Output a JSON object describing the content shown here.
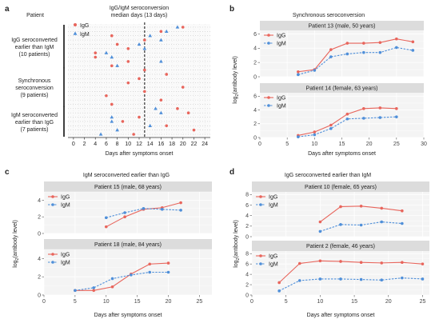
{
  "figure": {
    "panels": [
      {
        "letter": "a"
      },
      {
        "letter": "b"
      },
      {
        "letter": "c"
      },
      {
        "letter": "d"
      }
    ]
  },
  "colors": {
    "igg": "#e8655c",
    "igm": "#4f8fd9",
    "panel_bg": "#f4f4f4",
    "strip_bg": "#dcdcdc",
    "grid": "#ffffff",
    "dot_grid": "#c8c8c8"
  },
  "chart_data": [
    {
      "id": "a",
      "type": "scatter",
      "title": "IgG/IgM seroconversion",
      "subtitle": "median days (13 days)",
      "row_header": "Patient",
      "xlabel": "Days after symptoms onset",
      "xlim": [
        -1,
        25
      ],
      "xticks": [
        0,
        2,
        4,
        6,
        8,
        10,
        12,
        14,
        16,
        18,
        20,
        22,
        24
      ],
      "median": 13,
      "legend": [
        {
          "key": "igg",
          "label": "IgG",
          "marker": "circle"
        },
        {
          "key": "igm",
          "label": "IgM",
          "marker": "triangle"
        }
      ],
      "groups": [
        {
          "label_lines": [
            "IgG seroconverted",
            "earlier than IgM",
            "(10 patients)"
          ],
          "rows": [
            0,
            9
          ]
        },
        {
          "label_lines": [
            "Synchronous",
            "seroconversion",
            "(9 patients)"
          ],
          "rows": [
            10,
            18
          ]
        },
        {
          "label_lines": [
            "IgM seroconverted",
            "earlier than IgG",
            "(7 patients)"
          ],
          "rows": [
            19,
            25
          ]
        }
      ],
      "rows_total": 26,
      "points": [
        {
          "row": 0,
          "igg": 20,
          "igm": 19
        },
        {
          "row": 1,
          "igg": 16,
          "igm": 17
        },
        {
          "row": 2,
          "igg": 7,
          "igm": 14
        },
        {
          "row": 3,
          "igg": 13,
          "igm": 16
        },
        {
          "row": 4,
          "igg": 8,
          "igm": 12
        },
        {
          "row": 5,
          "igg": 10,
          "igm": 13
        },
        {
          "row": 6,
          "igg": 4,
          "igm": 6
        },
        {
          "row": 7,
          "igg": 4,
          "igm": 7
        },
        {
          "row": 8,
          "igg": 10,
          "igm": 16
        },
        {
          "row": 9,
          "igg": 7,
          "igm": 8
        },
        {
          "row": 10,
          "igg": 13,
          "igm": 13
        },
        {
          "row": 11,
          "igg": 17,
          "igm": 17
        },
        {
          "row": 12,
          "igg": 12,
          "igm": 12
        },
        {
          "row": 13,
          "igg": 10,
          "igm": 10
        },
        {
          "row": 14,
          "igg": 20,
          "igm": 20
        },
        {
          "row": 15,
          "igg": 13,
          "igm": 13
        },
        {
          "row": 16,
          "igg": 6,
          "igm": 6
        },
        {
          "row": 17,
          "igg": 16,
          "igm": 16
        },
        {
          "row": 18,
          "igg": 7,
          "igm": 7
        },
        {
          "row": 19,
          "igg": 19,
          "igm": 15
        },
        {
          "row": 20,
          "igg": 21,
          "igm": 16
        },
        {
          "row": 21,
          "igg": 12,
          "igm": 7
        },
        {
          "row": 22,
          "igg": 9,
          "igm": 7
        },
        {
          "row": 23,
          "igg": 17,
          "igm": 14
        },
        {
          "row": 24,
          "igg": 22,
          "igm": 8
        },
        {
          "row": 25,
          "igg": 11,
          "igm": 5
        }
      ]
    },
    {
      "id": "b",
      "type": "line",
      "title": "Synchronous seroconversion",
      "xlabel": "Days after symptoms onset",
      "ylabel": "log2(antibody level)",
      "xlim": [
        0,
        30
      ],
      "xticks": [
        0,
        5,
        10,
        15,
        20,
        25,
        30
      ],
      "facets": [
        {
          "strip": "Patient 13 (male, 50 years)",
          "ylim": [
            0,
            6.5
          ],
          "yticks": [
            0,
            2,
            4,
            6
          ],
          "series": [
            {
              "key": "igg",
              "name": "IgG",
              "x": [
                7,
                10,
                13,
                16,
                19,
                22,
                25,
                28
              ],
              "y": [
                0.7,
                1.0,
                3.8,
                4.7,
                4.7,
                4.8,
                5.3,
                4.9
              ]
            },
            {
              "key": "igm",
              "name": "IgM",
              "x": [
                7,
                10,
                13,
                16,
                19,
                22,
                25,
                28
              ],
              "y": [
                0.3,
                0.9,
                2.8,
                3.2,
                3.4,
                3.4,
                4.1,
                3.7
              ]
            }
          ]
        },
        {
          "strip": "Patient 14 (female, 63 years)",
          "ylim": [
            0,
            6.5
          ],
          "yticks": [
            0,
            2,
            4,
            6
          ],
          "series": [
            {
              "key": "igg",
              "name": "IgG",
              "x": [
                7,
                10,
                13,
                16,
                19,
                22,
                25
              ],
              "y": [
                0.3,
                0.8,
                1.8,
                3.4,
                4.2,
                4.3,
                4.2
              ]
            },
            {
              "key": "igm",
              "name": "IgM",
              "x": [
                7,
                10,
                13,
                16,
                19,
                22,
                25
              ],
              "y": [
                0.1,
                0.4,
                1.3,
                2.7,
                2.8,
                2.9,
                3.0
              ]
            }
          ]
        }
      ]
    },
    {
      "id": "c",
      "type": "line",
      "title": "IgM seroconverted earlier than IgG",
      "xlabel": "Days after symptoms onset",
      "ylabel": "log2(antibody level)",
      "xlim": [
        0,
        27
      ],
      "xticks": [
        0,
        5,
        10,
        15,
        20,
        25
      ],
      "facets": [
        {
          "strip": "Patient 15 (male, 68 years)",
          "ylim": [
            0,
            5
          ],
          "yticks": [
            0,
            2,
            4
          ],
          "series": [
            {
              "key": "igg",
              "name": "IgG",
              "x": [
                10,
                13,
                16,
                19,
                22
              ],
              "y": [
                0.8,
                2.0,
                2.9,
                3.1,
                3.7
              ]
            },
            {
              "key": "igm",
              "name": "IgM",
              "x": [
                10,
                13,
                16,
                19,
                22
              ],
              "y": [
                1.9,
                2.5,
                3.0,
                2.9,
                2.8
              ]
            }
          ]
        },
        {
          "strip": "Patient 18 (male, 84 years)",
          "ylim": [
            0,
            5
          ],
          "yticks": [
            0,
            2,
            4
          ],
          "series": [
            {
              "key": "igg",
              "name": "IgG",
              "x": [
                5,
                8,
                11,
                14,
                17,
                20
              ],
              "y": [
                0.5,
                0.5,
                0.9,
                2.3,
                3.4,
                3.5
              ]
            },
            {
              "key": "igm",
              "name": "IgM",
              "x": [
                5,
                8,
                11,
                14,
                17,
                20
              ],
              "y": [
                0.5,
                0.8,
                1.8,
                2.2,
                2.5,
                2.5
              ]
            }
          ]
        }
      ]
    },
    {
      "id": "d",
      "type": "line",
      "title": "IgG seroconverted earlier than IgM",
      "xlabel": "Days after symptoms onset",
      "ylabel": "log2(antibody level)",
      "xlim": [
        0,
        26
      ],
      "xticks": [
        0,
        5,
        10,
        15,
        20,
        25
      ],
      "facets": [
        {
          "strip": "Patient 10 (female, 65 years)",
          "ylim": [
            0,
            8.5
          ],
          "yticks": [
            0,
            2,
            4,
            6,
            8
          ],
          "series": [
            {
              "key": "igg",
              "name": "IgG",
              "x": [
                10,
                13,
                16,
                19,
                22
              ],
              "y": [
                2.8,
                5.7,
                5.8,
                5.4,
                4.9
              ]
            },
            {
              "key": "igm",
              "name": "IgM",
              "x": [
                10,
                13,
                16,
                19,
                22
              ],
              "y": [
                1.0,
                2.3,
                2.2,
                2.8,
                2.5
              ]
            }
          ]
        },
        {
          "strip": "Patient 2 (female, 46 years)",
          "ylim": [
            0,
            8.5
          ],
          "yticks": [
            0,
            2,
            4,
            6,
            8
          ],
          "series": [
            {
              "key": "igg",
              "name": "IgG",
              "x": [
                4,
                7,
                10,
                13,
                16,
                19,
                22,
                25
              ],
              "y": [
                2.4,
                6.1,
                6.6,
                6.5,
                6.3,
                6.2,
                6.3,
                6.0
              ]
            },
            {
              "key": "igm",
              "name": "IgM",
              "x": [
                4,
                7,
                10,
                13,
                16,
                19,
                22,
                25
              ],
              "y": [
                0.8,
                2.8,
                3.1,
                3.1,
                3.0,
                2.9,
                3.3,
                3.1
              ]
            }
          ]
        }
      ]
    }
  ]
}
